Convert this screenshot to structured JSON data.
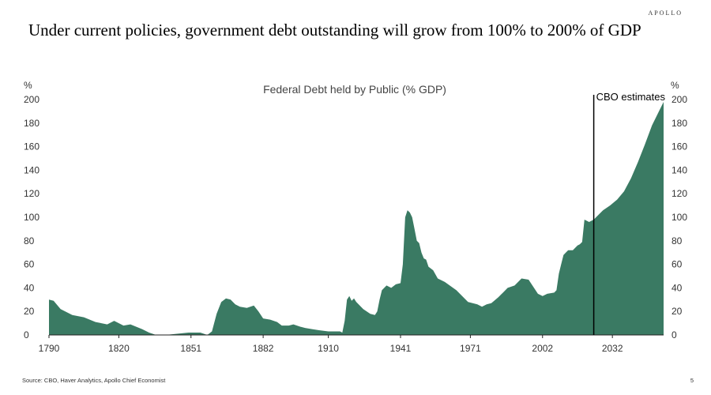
{
  "brand": "APOLLO",
  "headline": "Under current policies, government debt outstanding will grow from 100% to 200% of GDP",
  "footer": {
    "source": "Source: CBO, Haver Analytics, Apollo Chief Economist",
    "page": "5"
  },
  "colors": {
    "area": "#3a7a63",
    "vline": "#000000"
  },
  "chart_data": {
    "type": "area",
    "title": "Federal Debt held by Public (% GDP)",
    "left_unit": "%",
    "right_unit": "%",
    "ylim": [
      0,
      200
    ],
    "y_ticks": [
      "0",
      "20",
      "40",
      "60",
      "80",
      "100",
      "120",
      "140",
      "160",
      "180",
      "200"
    ],
    "xlim": [
      1790,
      2054
    ],
    "x_ticks": [
      "1790",
      "1820",
      "1851",
      "1882",
      "1910",
      "1941",
      "1971",
      "2002",
      "2032"
    ],
    "grid": false,
    "annotation": {
      "label": "CBO estimates",
      "x": 2024
    },
    "x": [
      1790,
      1792,
      1795,
      1800,
      1805,
      1810,
      1815,
      1818,
      1822,
      1825,
      1830,
      1833,
      1836,
      1840,
      1845,
      1850,
      1855,
      1858,
      1860,
      1862,
      1864,
      1866,
      1868,
      1870,
      1872,
      1875,
      1878,
      1880,
      1882,
      1885,
      1888,
      1890,
      1893,
      1895,
      1898,
      1900,
      1903,
      1906,
      1910,
      1913,
      1915,
      1916,
      1917,
      1918,
      1919,
      1920,
      1921,
      1922,
      1925,
      1928,
      1930,
      1931,
      1932,
      1933,
      1935,
      1937,
      1939,
      1941,
      1942,
      1943,
      1944,
      1945,
      1946,
      1947,
      1948,
      1949,
      1950,
      1951,
      1952,
      1953,
      1955,
      1957,
      1960,
      1965,
      1970,
      1974,
      1976,
      1978,
      1980,
      1983,
      1987,
      1990,
      1993,
      1996,
      2000,
      2002,
      2004,
      2007,
      2008,
      2009,
      2010,
      2011,
      2012,
      2013,
      2015,
      2017,
      2018,
      2019,
      2020,
      2021,
      2022,
      2023,
      2024,
      2025,
      2028,
      2031,
      2034,
      2037,
      2040,
      2043,
      2046,
      2049,
      2052,
      2054
    ],
    "values": [
      30,
      29,
      22,
      17,
      15,
      11,
      9,
      12,
      8,
      9,
      5,
      2,
      0,
      0,
      1,
      2,
      2,
      0,
      3,
      18,
      28,
      31,
      30,
      26,
      24,
      23,
      25,
      20,
      14,
      13,
      11,
      8,
      8,
      9,
      7,
      6,
      5,
      4,
      3,
      3,
      3,
      2,
      12,
      30,
      33,
      29,
      31,
      28,
      22,
      18,
      17,
      20,
      30,
      38,
      42,
      40,
      43,
      44,
      60,
      100,
      106,
      104,
      100,
      90,
      80,
      78,
      70,
      65,
      64,
      58,
      55,
      48,
      45,
      38,
      28,
      26,
      24,
      26,
      27,
      32,
      40,
      42,
      48,
      47,
      35,
      33,
      35,
      36,
      38,
      52,
      60,
      68,
      70,
      72,
      72,
      76,
      77,
      79,
      98,
      97,
      96,
      97,
      98,
      100,
      106,
      110,
      115,
      122,
      133,
      147,
      162,
      178,
      190,
      198
    ]
  }
}
